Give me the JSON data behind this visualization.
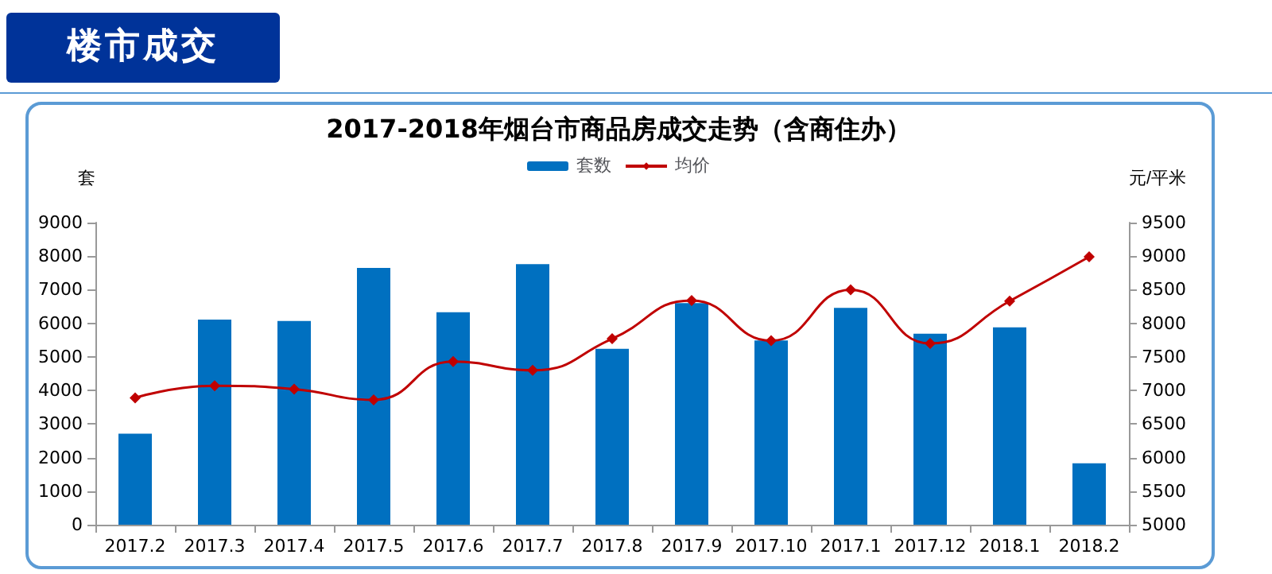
{
  "chart_data": {
    "type": "bar",
    "title": "2017-2018年烟台市商品房成交走势（含商住办）",
    "annotations": [
      "楼市成交"
    ],
    "ylabel": "套",
    "y2label": "元/平米",
    "categories": [
      "2017.2",
      "2017.3",
      "2017.4",
      "2017.5",
      "2017.6",
      "2017.7",
      "2017.8",
      "2017.9",
      "2017.10",
      "2017.1",
      "2017.12",
      "2018.1",
      "2018.2"
    ],
    "series": [
      {
        "name": "套数",
        "color": "#0070c0",
        "values": [
          2710,
          6110,
          6070,
          7650,
          6330,
          7760,
          5240,
          6600,
          5490,
          6460,
          5690,
          5880,
          1830
        ]
      },
      {
        "name": "均价",
        "type": "line",
        "axis": "y2",
        "color": "#c00000",
        "marker": "diamond",
        "values": [
          6890,
          7070,
          7020,
          6860,
          7430,
          7300,
          7770,
          8340,
          7740,
          8500,
          7700,
          8330,
          8990
        ]
      }
    ],
    "ylim": [
      0,
      9000
    ],
    "yticks": [
      0,
      1000,
      2000,
      3000,
      4000,
      5000,
      6000,
      7000,
      8000,
      9000
    ],
    "y2lim": [
      5000,
      9500
    ],
    "y2ticks": [
      5000,
      5500,
      6000,
      6500,
      7000,
      7500,
      8000,
      8500,
      9000,
      9500
    ],
    "legend": "top",
    "grid": false
  }
}
